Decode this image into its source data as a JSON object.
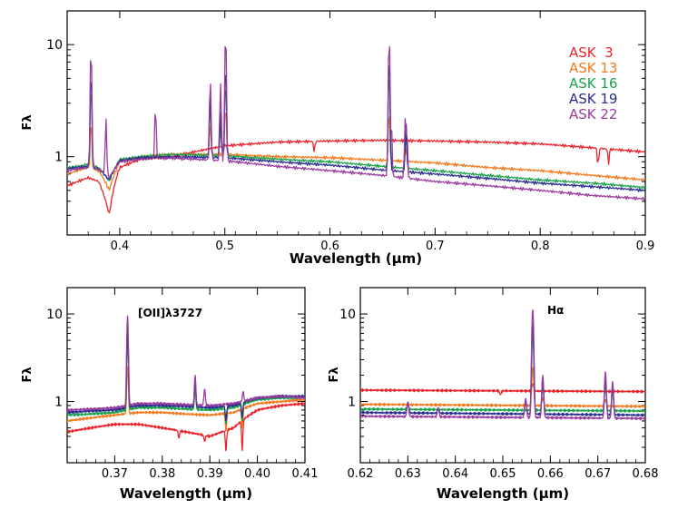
{
  "chart_data": [
    {
      "type": "line",
      "xlabel": "Wavelength (μm)",
      "ylabel": "Fλ",
      "xlim": [
        0.35,
        0.9
      ],
      "ylim": [
        0.2,
        20
      ],
      "yscale": "log",
      "xticks": [
        0.4,
        0.5,
        0.6,
        0.7,
        0.8,
        0.9
      ],
      "xtick_labels": [
        "0.4",
        "0.5",
        "0.6",
        "0.7",
        "0.8",
        "0.9"
      ],
      "yticks": [
        1,
        10
      ],
      "ytick_labels": [
        "1",
        "10"
      ],
      "legend": "top-right",
      "series": [
        {
          "name": "ASK  3",
          "color": "#e8232a",
          "x": [
            0.35,
            0.36,
            0.37,
            0.38,
            0.39,
            0.4,
            0.42,
            0.45,
            0.5,
            0.55,
            0.6,
            0.65,
            0.7,
            0.75,
            0.8,
            0.85,
            0.9
          ],
          "y": [
            0.55,
            0.6,
            0.65,
            0.6,
            0.3,
            0.8,
            0.95,
            1.0,
            1.25,
            1.35,
            1.38,
            1.4,
            1.38,
            1.35,
            1.3,
            1.2,
            1.1
          ],
          "lines": [
            {
              "x": 0.585,
              "peak": 1.1,
              "dip": true
            },
            {
              "x": 0.855,
              "peak": 0.8,
              "dip": true
            },
            {
              "x": 0.865,
              "peak": 0.85,
              "dip": true
            }
          ]
        },
        {
          "name": "ASK 13",
          "color": "#f07a1e",
          "x": [
            0.35,
            0.36,
            0.37,
            0.38,
            0.39,
            0.4,
            0.42,
            0.45,
            0.5,
            0.55,
            0.6,
            0.65,
            0.7,
            0.75,
            0.8,
            0.85,
            0.9
          ],
          "y": [
            0.7,
            0.75,
            0.8,
            0.75,
            0.5,
            0.9,
            1.0,
            1.05,
            1.05,
            1.0,
            0.98,
            0.93,
            0.88,
            0.8,
            0.75,
            0.68,
            0.62
          ],
          "lines": [
            {
              "x": 0.3727,
              "peak": 2.2
            },
            {
              "x": 0.4861,
              "peak": 2.0
            },
            {
              "x": 0.5007,
              "peak": 3.0
            },
            {
              "x": 0.6563,
              "peak": 2.6
            },
            {
              "x": 0.6724,
              "peak": 1.2
            }
          ]
        },
        {
          "name": "ASK 16",
          "color": "#1aa34a",
          "x": [
            0.35,
            0.36,
            0.37,
            0.38,
            0.39,
            0.4,
            0.42,
            0.45,
            0.5,
            0.55,
            0.6,
            0.65,
            0.7,
            0.75,
            0.8,
            0.85,
            0.9
          ],
          "y": [
            0.8,
            0.82,
            0.85,
            0.8,
            0.6,
            0.95,
            1.0,
            1.05,
            1.02,
            0.95,
            0.9,
            0.82,
            0.75,
            0.68,
            0.62,
            0.58,
            0.53
          ],
          "lines": [
            {
              "x": 0.3727,
              "peak": 4.5
            },
            {
              "x": 0.4861,
              "peak": 3.0
            },
            {
              "x": 0.4959,
              "peak": 2.0
            },
            {
              "x": 0.5007,
              "peak": 5.0
            },
            {
              "x": 0.6563,
              "peak": 6.0
            },
            {
              "x": 0.6724,
              "peak": 1.8
            }
          ]
        },
        {
          "name": "ASK 19",
          "color": "#2a2e8f",
          "x": [
            0.35,
            0.36,
            0.37,
            0.38,
            0.39,
            0.4,
            0.42,
            0.45,
            0.5,
            0.55,
            0.6,
            0.65,
            0.7,
            0.75,
            0.8,
            0.85,
            0.9
          ],
          "y": [
            0.78,
            0.8,
            0.82,
            0.78,
            0.62,
            0.92,
            0.98,
            1.0,
            0.98,
            0.9,
            0.84,
            0.76,
            0.7,
            0.64,
            0.58,
            0.54,
            0.5
          ],
          "lines": [
            {
              "x": 0.3727,
              "peak": 6.0
            },
            {
              "x": 0.4861,
              "peak": 3.5
            },
            {
              "x": 0.4959,
              "peak": 2.5
            },
            {
              "x": 0.5007,
              "peak": 7.0
            },
            {
              "x": 0.6563,
              "peak": 8.0
            },
            {
              "x": 0.6724,
              "peak": 2.0
            }
          ]
        },
        {
          "name": "ASK 22",
          "color": "#9a3c9f",
          "x": [
            0.35,
            0.36,
            0.37,
            0.38,
            0.39,
            0.4,
            0.42,
            0.45,
            0.5,
            0.55,
            0.6,
            0.65,
            0.7,
            0.75,
            0.8,
            0.85,
            0.9
          ],
          "y": [
            0.75,
            0.78,
            0.8,
            0.77,
            0.65,
            0.9,
            0.95,
            0.97,
            0.92,
            0.82,
            0.75,
            0.68,
            0.6,
            0.55,
            0.5,
            0.45,
            0.42
          ],
          "lines": [
            {
              "x": 0.3727,
              "peak": 9.5
            },
            {
              "x": 0.3869,
              "peak": 2.2
            },
            {
              "x": 0.434,
              "peak": 2.8
            },
            {
              "x": 0.4861,
              "peak": 5.0
            },
            {
              "x": 0.4959,
              "peak": 4.5
            },
            {
              "x": 0.5007,
              "peak": 13.0
            },
            {
              "x": 0.6563,
              "peak": 12.0
            },
            {
              "x": 0.6584,
              "peak": 2.0
            },
            {
              "x": 0.6716,
              "peak": 2.2
            },
            {
              "x": 0.6731,
              "peak": 1.8
            }
          ]
        }
      ]
    },
    {
      "type": "line",
      "xlabel": "Wavelength (μm)",
      "ylabel": "Fλ",
      "xlim": [
        0.36,
        0.41
      ],
      "ylim": [
        0.2,
        20
      ],
      "yscale": "log",
      "xticks": [
        0.37,
        0.38,
        0.39,
        0.4,
        0.41
      ],
      "xtick_labels": [
        "0.37",
        "0.38",
        "0.39",
        "0.40",
        "0.41"
      ],
      "yticks": [
        1,
        10
      ],
      "ytick_labels": [
        "1",
        "10"
      ],
      "annotations": [
        {
          "text": "[OII]λ3727",
          "x": 0.3735,
          "y": 9.0
        }
      ],
      "series": [
        {
          "name": "ASK  3",
          "color": "#e8232a",
          "x": [
            0.36,
            0.365,
            0.37,
            0.375,
            0.38,
            0.385,
            0.39,
            0.395,
            0.4,
            0.405,
            0.41
          ],
          "y": [
            0.45,
            0.5,
            0.55,
            0.55,
            0.5,
            0.45,
            0.4,
            0.5,
            0.8,
            0.9,
            0.95
          ],
          "lines": [
            {
              "x": 0.3934,
              "peak": 0.27,
              "dip": true
            },
            {
              "x": 0.3968,
              "peak": 0.27,
              "dip": true
            },
            {
              "x": 0.3889,
              "peak": 0.35,
              "dip": true
            },
            {
              "x": 0.3835,
              "peak": 0.38,
              "dip": true
            }
          ]
        },
        {
          "name": "ASK 13",
          "color": "#f07a1e",
          "x": [
            0.36,
            0.365,
            0.37,
            0.375,
            0.38,
            0.385,
            0.39,
            0.395,
            0.4,
            0.405,
            0.41
          ],
          "y": [
            0.6,
            0.65,
            0.7,
            0.75,
            0.75,
            0.72,
            0.7,
            0.75,
            0.95,
            1.0,
            1.05
          ],
          "lines": [
            {
              "x": 0.3727,
              "peak": 2.5
            },
            {
              "x": 0.3934,
              "peak": 0.45,
              "dip": true
            },
            {
              "x": 0.3968,
              "peak": 0.5,
              "dip": true
            }
          ]
        },
        {
          "name": "ASK 16",
          "color": "#1aa34a",
          "x": [
            0.36,
            0.365,
            0.37,
            0.375,
            0.38,
            0.385,
            0.39,
            0.395,
            0.4,
            0.405,
            0.41
          ],
          "y": [
            0.7,
            0.72,
            0.75,
            0.85,
            0.85,
            0.82,
            0.8,
            0.85,
            1.05,
            1.1,
            1.1
          ],
          "lines": [
            {
              "x": 0.3727,
              "peak": 5.0
            },
            {
              "x": 0.3869,
              "peak": 1.4
            },
            {
              "x": 0.3934,
              "peak": 0.55,
              "dip": true
            },
            {
              "x": 0.3968,
              "peak": 0.6,
              "dip": true
            }
          ]
        },
        {
          "name": "ASK 19",
          "color": "#2a2e8f",
          "x": [
            0.36,
            0.365,
            0.37,
            0.375,
            0.38,
            0.385,
            0.39,
            0.395,
            0.4,
            0.405,
            0.41
          ],
          "y": [
            0.75,
            0.78,
            0.8,
            0.9,
            0.9,
            0.88,
            0.85,
            0.9,
            1.1,
            1.15,
            1.15
          ],
          "lines": [
            {
              "x": 0.3727,
              "peak": 7.0
            },
            {
              "x": 0.3869,
              "peak": 1.7
            },
            {
              "x": 0.3934,
              "peak": 0.6,
              "dip": true
            },
            {
              "x": 0.3968,
              "peak": 0.65,
              "dip": true
            }
          ]
        },
        {
          "name": "ASK 22",
          "color": "#9a3c9f",
          "x": [
            0.36,
            0.365,
            0.37,
            0.375,
            0.38,
            0.385,
            0.39,
            0.395,
            0.4,
            0.405,
            0.41
          ],
          "y": [
            0.8,
            0.82,
            0.85,
            0.95,
            0.95,
            0.92,
            0.9,
            0.95,
            1.1,
            1.15,
            1.1
          ],
          "lines": [
            {
              "x": 0.3727,
              "peak": 9.5
            },
            {
              "x": 0.3869,
              "peak": 2.0
            },
            {
              "x": 0.3889,
              "peak": 1.4
            },
            {
              "x": 0.397,
              "peak": 1.3
            }
          ]
        }
      ]
    },
    {
      "type": "line",
      "xlabel": "Wavelength (μm)",
      "ylabel": "Fλ",
      "xlim": [
        0.62,
        0.68
      ],
      "ylim": [
        0.2,
        20
      ],
      "yscale": "log",
      "xticks": [
        0.62,
        0.63,
        0.64,
        0.65,
        0.66,
        0.67,
        0.68
      ],
      "xtick_labels": [
        "0.62",
        "0.63",
        "0.64",
        "0.65",
        "0.66",
        "0.67",
        "0.68"
      ],
      "yticks": [
        1,
        10
      ],
      "ytick_labels": [
        "1",
        "10"
      ],
      "annotations": [
        {
          "text": "Hα",
          "x": 0.6575,
          "y": 9.0
        }
      ],
      "series": [
        {
          "name": "ASK  3",
          "color": "#e8232a",
          "x": [
            0.62,
            0.68
          ],
          "y": [
            1.35,
            1.3
          ],
          "lines": [
            {
              "x": 0.6495,
              "peak": 1.2,
              "dip": true
            },
            {
              "x": 0.6563,
              "peak": 1.6
            }
          ]
        },
        {
          "name": "ASK 13",
          "color": "#f07a1e",
          "x": [
            0.62,
            0.68
          ],
          "y": [
            0.93,
            0.88
          ],
          "lines": [
            {
              "x": 0.6563,
              "peak": 2.5
            },
            {
              "x": 0.6584,
              "peak": 1.1
            },
            {
              "x": 0.6716,
              "peak": 1.05
            }
          ]
        },
        {
          "name": "ASK 16",
          "color": "#1aa34a",
          "x": [
            0.62,
            0.68
          ],
          "y": [
            0.82,
            0.78
          ],
          "lines": [
            {
              "x": 0.63,
              "peak": 0.95
            },
            {
              "x": 0.6563,
              "peak": 6.0
            },
            {
              "x": 0.6584,
              "peak": 1.5
            },
            {
              "x": 0.6716,
              "peak": 1.6
            },
            {
              "x": 0.6731,
              "peak": 1.3
            }
          ]
        },
        {
          "name": "ASK 19",
          "color": "#2a2e8f",
          "x": [
            0.62,
            0.68
          ],
          "y": [
            0.75,
            0.7
          ],
          "lines": [
            {
              "x": 0.63,
              "peak": 0.98
            },
            {
              "x": 0.6364,
              "peak": 0.85
            },
            {
              "x": 0.6548,
              "peak": 1.0
            },
            {
              "x": 0.6563,
              "peak": 8.0
            },
            {
              "x": 0.6584,
              "peak": 1.8
            },
            {
              "x": 0.6716,
              "peak": 1.9
            },
            {
              "x": 0.6731,
              "peak": 1.5
            }
          ]
        },
        {
          "name": "ASK 22",
          "color": "#9a3c9f",
          "x": [
            0.62,
            0.68
          ],
          "y": [
            0.68,
            0.64
          ],
          "lines": [
            {
              "x": 0.63,
              "peak": 1.0
            },
            {
              "x": 0.6364,
              "peak": 0.85
            },
            {
              "x": 0.6548,
              "peak": 1.1
            },
            {
              "x": 0.6563,
              "peak": 11.5
            },
            {
              "x": 0.6584,
              "peak": 2.0
            },
            {
              "x": 0.6716,
              "peak": 2.2
            },
            {
              "x": 0.6731,
              "peak": 1.7
            }
          ]
        }
      ]
    }
  ]
}
